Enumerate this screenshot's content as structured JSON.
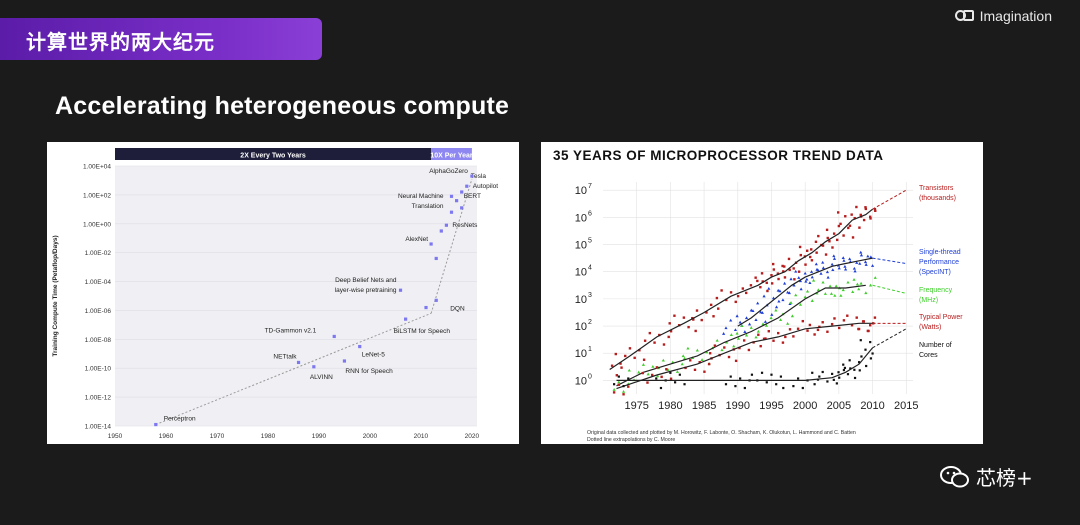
{
  "banner": {
    "title": "计算世界的两大纪元"
  },
  "brand": {
    "logo_text": "Imagination"
  },
  "slide": {
    "headline": "Accelerating heterogeneous compute"
  },
  "watermark": {
    "text": "芯榜+",
    "icon": "wechat-icon"
  },
  "chart_data": [
    {
      "type": "scatter",
      "title": "",
      "ylabel": "Training Compute Time (Petaflop/Days)",
      "xlabel": "",
      "x_ticks": [
        "1950",
        "1960",
        "1970",
        "1980",
        "1990",
        "2000",
        "2010",
        "2020"
      ],
      "y_ticks": [
        "1.00E-14",
        "1.00E-12",
        "1.00E-10",
        "1.00E-08",
        "1.00E-06",
        "1.00E-04",
        "1.00E-02",
        "1.00E+00",
        "1.00E+02",
        "1.00E+04"
      ],
      "xlim": [
        1950,
        2021
      ],
      "ylim_log10": [
        -14,
        4
      ],
      "banners": [
        {
          "label": "2X Every Two Years",
          "from": 1950,
          "to": 2012
        },
        {
          "label": "10X Per Year",
          "from": 2012,
          "to": 2020
        }
      ],
      "colors": {
        "points": "#7d78f0",
        "trend": "#9a9a9a",
        "banner_dark": "#1e1e3a",
        "banner_light": "#8e87f2"
      },
      "trendlines": [
        {
          "x": [
            1958,
            2012
          ],
          "log10_y": [
            -13.9,
            -6.2
          ]
        },
        {
          "x": [
            2012,
            2020
          ],
          "log10_y": [
            -6.2,
            3.1
          ]
        }
      ],
      "points": [
        {
          "x": 1958,
          "log10_y": -13.9,
          "label": "Perceptron"
        },
        {
          "x": 1986,
          "log10_y": -9.6,
          "label": "NETtalk"
        },
        {
          "x": 1989,
          "log10_y": -9.9,
          "label": "ALVINN"
        },
        {
          "x": 1993,
          "log10_y": -7.8,
          "label": "TD-Gammon v2.1"
        },
        {
          "x": 1995,
          "log10_y": -9.5,
          "label": "RNN for Speech"
        },
        {
          "x": 1998,
          "log10_y": -8.5,
          "label": "LeNet-5"
        },
        {
          "x": 2006,
          "log10_y": -4.6,
          "label": "Deep Belief Nets and layer-wise pretraining"
        },
        {
          "x": 2007,
          "log10_y": -6.6,
          "label": "BiLSTM for Speech"
        },
        {
          "x": 2012,
          "log10_y": -1.4,
          "label": "AlexNet"
        },
        {
          "x": 2013,
          "log10_y": -5.3,
          "label": "DQN"
        },
        {
          "x": 2014,
          "log10_y": -0.5,
          "label": ""
        },
        {
          "x": 2015,
          "log10_y": -0.1,
          "label": "ResNets"
        },
        {
          "x": 2016,
          "log10_y": 0.8,
          "label": "Neural Machine Translation"
        },
        {
          "x": 2017,
          "log10_y": 1.6,
          "label": ""
        },
        {
          "x": 2018,
          "log10_y": 2.2,
          "label": "BERT"
        },
        {
          "x": 2019,
          "log10_y": 2.6,
          "label": "Tesla Autopilot"
        },
        {
          "x": 2020,
          "log10_y": 3.3,
          "label": "AlphaGoZero"
        },
        {
          "x": 2011,
          "log10_y": -5.8,
          "label": ""
        },
        {
          "x": 2013,
          "log10_y": -2.4,
          "label": ""
        },
        {
          "x": 2016,
          "log10_y": 1.9,
          "label": ""
        },
        {
          "x": 2018,
          "log10_y": 1.1,
          "label": ""
        }
      ]
    },
    {
      "type": "scatter",
      "title": "35 YEARS OF MICROPROCESSOR TREND DATA",
      "x_ticks": [
        "1975",
        "1980",
        "1985",
        "1990",
        "1995",
        "2000",
        "2005",
        "2010",
        "2015"
      ],
      "y_ticks_exp": [
        0,
        1,
        2,
        3,
        4,
        5,
        6,
        7
      ],
      "xlim": [
        1970,
        2016
      ],
      "ylim_log10": [
        -0.5,
        7.3
      ],
      "series": [
        {
          "name": "Transistors (thousands)",
          "color": "#b81d1d",
          "x": [
            1971,
            1974,
            1978,
            1982,
            1985,
            1989,
            1993,
            1995,
            1997,
            1999,
            2001,
            2003,
            2005,
            2007,
            2009,
            2010
          ],
          "log10_y": [
            0.4,
            0.9,
            1.6,
            2.1,
            2.5,
            3.1,
            3.5,
            3.8,
            4.0,
            4.4,
            4.7,
            5.1,
            5.4,
            5.9,
            6.1,
            6.3
          ],
          "projection": [
            [
              2010,
              6.3
            ],
            [
              2015,
              7.0
            ]
          ]
        },
        {
          "name": "Single-thread Performance (SpecINT)",
          "color": "#1f3fd6",
          "x": [
            1990,
            1992,
            1994,
            1996,
            1998,
            2000,
            2002,
            2004,
            2006,
            2008,
            2010
          ],
          "log10_y": [
            2.0,
            2.3,
            2.7,
            3.1,
            3.5,
            3.8,
            4.0,
            4.2,
            4.3,
            4.4,
            4.5
          ],
          "projection": [
            [
              2010,
              4.5
            ],
            [
              2015,
              4.3
            ]
          ]
        },
        {
          "name": "Frequency (MHz)",
          "color": "#3fcf2a",
          "x": [
            1972,
            1976,
            1980,
            1984,
            1988,
            1992,
            1996,
            2000,
            2003,
            2006,
            2009
          ],
          "log10_y": [
            -0.2,
            0.3,
            0.6,
            0.9,
            1.4,
            1.8,
            2.3,
            3.0,
            3.4,
            3.4,
            3.5
          ],
          "projection": [
            [
              2010,
              3.5
            ],
            [
              2015,
              3.2
            ]
          ]
        },
        {
          "name": "Typical Power (Watts)",
          "color": "#b81d1d",
          "x": [
            1972,
            1978,
            1984,
            1988,
            1992,
            1996,
            2000,
            2004,
            2008,
            2010
          ],
          "log10_y": [
            -0.3,
            0.2,
            0.6,
            1.0,
            1.4,
            1.6,
            1.9,
            2.0,
            2.1,
            2.1
          ],
          "projection": [
            [
              2010,
              2.1
            ],
            [
              2015,
              2.1
            ]
          ]
        },
        {
          "name": "Number of Cores",
          "color": "#111111",
          "x": [
            1972,
            1980,
            1990,
            1995,
            2000,
            2004,
            2006,
            2008,
            2010
          ],
          "log10_y": [
            0,
            0,
            0,
            0,
            0,
            0.1,
            0.3,
            0.6,
            1.2
          ],
          "projection": [
            [
              2010,
              1.2
            ],
            [
              2015,
              1.9
            ]
          ]
        }
      ],
      "footnote": [
        "Original data collected and plotted by M. Horowitz, F. Labonte, O. Shacham, K. Olukotun, L. Hammond and C. Batten",
        "Dotted line extrapolations by C. Moore"
      ]
    }
  ]
}
